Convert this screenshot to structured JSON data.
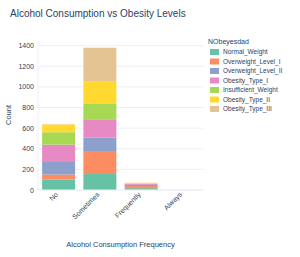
{
  "chart_data": {
    "type": "bar",
    "title": "Alcohol Consumption vs Obesity Levels",
    "x_label": "Alcohol Consumption Frequency",
    "y_label": "Count",
    "legend_title": "NObeyesdad",
    "categories": [
      "No",
      "Sometimes",
      "Frequently",
      "Always"
    ],
    "stacked": true,
    "grid": true,
    "legend": "right",
    "ylim": [
      0,
      1455
    ],
    "yticks": [
      0,
      200,
      400,
      600,
      800,
      1000,
      1200,
      1400
    ],
    "series": [
      {
        "name": "Normal_Weight",
        "color": "#66c2a5",
        "values": [
          100,
          155,
          18,
          1
        ]
      },
      {
        "name": "Overweight_Level_I",
        "color": "#fc8d62",
        "values": [
          50,
          215,
          20,
          0
        ]
      },
      {
        "name": "Overweight_Level_II",
        "color": "#8da0cb",
        "values": [
          130,
          140,
          12,
          0
        ]
      },
      {
        "name": "Obesity_Type_I",
        "color": "#e78ac3",
        "values": [
          160,
          170,
          10,
          0
        ]
      },
      {
        "name": "Insufficient_Weight",
        "color": "#a6d854",
        "values": [
          120,
          155,
          1,
          0
        ]
      },
      {
        "name": "Obesity_Type_II",
        "color": "#ffd92f",
        "values": [
          75,
          215,
          9,
          0
        ]
      },
      {
        "name": "Obesity_Type_III",
        "color": "#e5c494",
        "values": [
          4,
          330,
          0,
          0
        ]
      }
    ]
  }
}
